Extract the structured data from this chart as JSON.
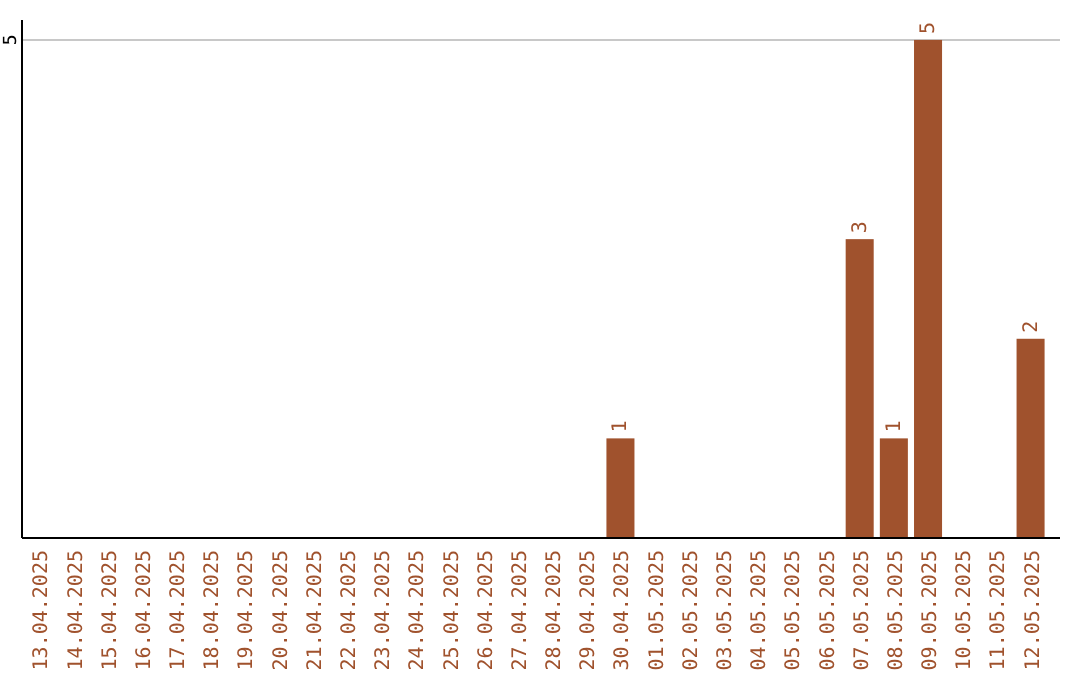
{
  "chart_data": {
    "type": "bar",
    "categories": [
      "13.04.2025",
      "14.04.2025",
      "15.04.2025",
      "16.04.2025",
      "17.04.2025",
      "18.04.2025",
      "19.04.2025",
      "20.04.2025",
      "21.04.2025",
      "22.04.2025",
      "23.04.2025",
      "24.04.2025",
      "25.04.2025",
      "26.04.2025",
      "27.04.2025",
      "28.04.2025",
      "29.04.2025",
      "30.04.2025",
      "01.05.2025",
      "02.05.2025",
      "03.05.2025",
      "04.05.2025",
      "05.05.2025",
      "06.05.2025",
      "07.05.2025",
      "08.05.2025",
      "09.05.2025",
      "10.05.2025",
      "11.05.2025",
      "12.05.2025"
    ],
    "values": [
      null,
      null,
      null,
      null,
      null,
      null,
      null,
      null,
      null,
      null,
      null,
      null,
      null,
      null,
      null,
      null,
      null,
      1,
      null,
      null,
      null,
      null,
      null,
      null,
      3,
      1,
      5,
      null,
      null,
      2
    ],
    "color": "#a0522d",
    "ylim": [
      0,
      5.2
    ],
    "yticks": [
      5
    ],
    "grid": "y",
    "data_labels": true
  }
}
